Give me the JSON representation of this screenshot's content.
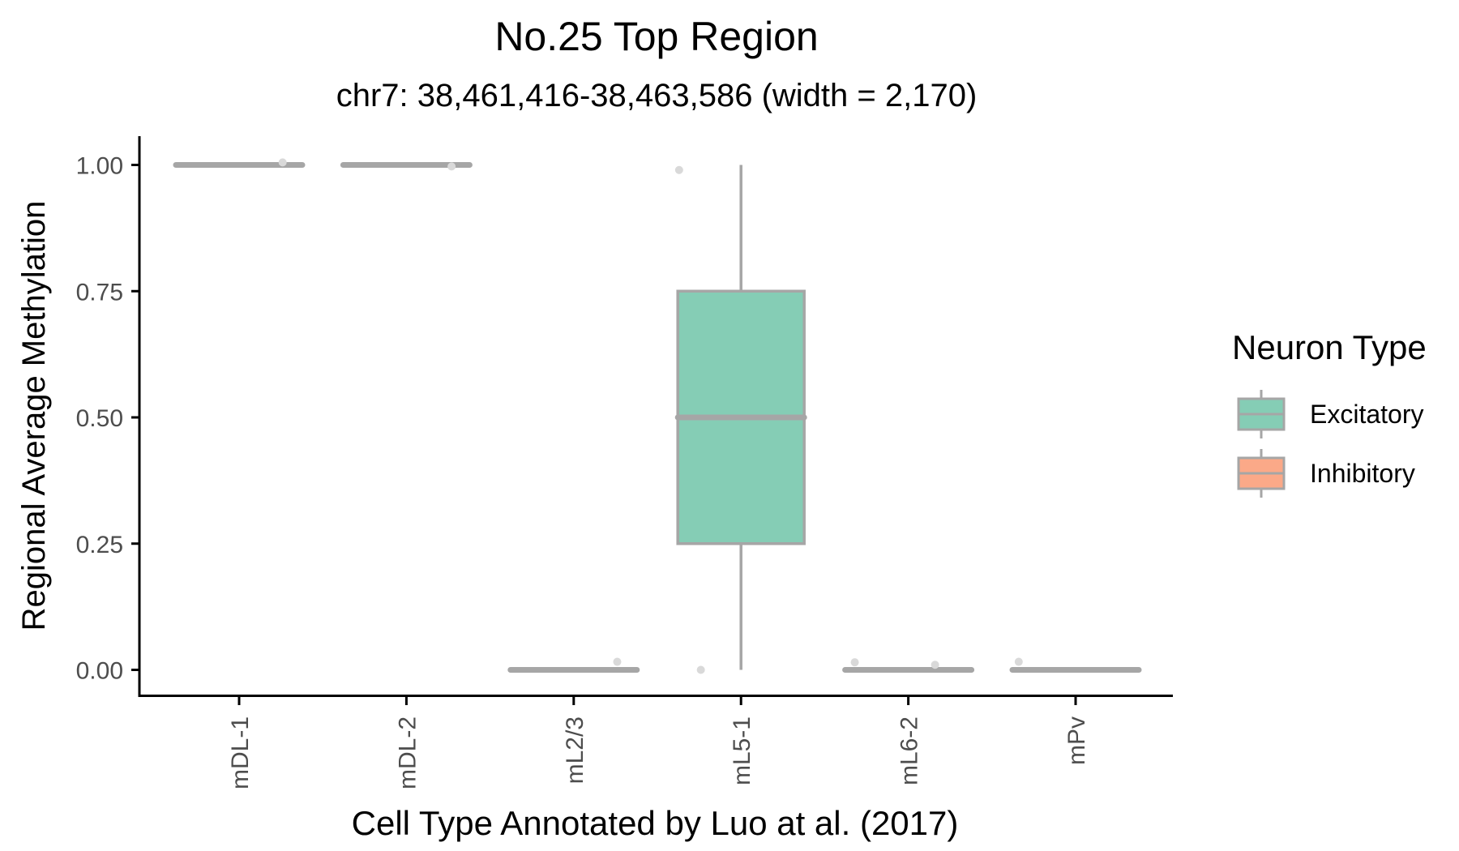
{
  "chart_data": {
    "type": "box",
    "title": "No.25 Top Region",
    "subtitle": "chr7: 38,461,416-38,463,586 (width = 2,170)",
    "xlabel": "Cell Type Annotated by Luo at al. (2017)",
    "ylabel": "Regional Average Methylation",
    "ylim": [
      -0.05,
      1.055
    ],
    "yticks": [
      0.0,
      0.25,
      0.5,
      0.75,
      1.0
    ],
    "ytick_labels": [
      "0.00",
      "0.25",
      "0.50",
      "0.75",
      "1.00"
    ],
    "grid": false,
    "legend": {
      "title": "Neuron Type",
      "position": "right",
      "entries": [
        {
          "label": "Excitatory",
          "color": "#85CDB5"
        },
        {
          "label": "Inhibitory",
          "color": "#FBA988"
        }
      ]
    },
    "categories": [
      "mDL-1",
      "mDL-2",
      "mL2/3",
      "mL5-1",
      "mL6-2",
      "mPv"
    ],
    "boxes": [
      {
        "category": "mDL-1",
        "group": "Excitatory",
        "min": 1.0,
        "q1": 1.0,
        "median": 1.0,
        "q3": 1.0,
        "max": 1.0
      },
      {
        "category": "mDL-2",
        "group": "Excitatory",
        "min": 1.0,
        "q1": 1.0,
        "median": 1.0,
        "q3": 1.0,
        "max": 1.0
      },
      {
        "category": "mL2/3",
        "group": "Excitatory",
        "min": 0.0,
        "q1": 0.0,
        "median": 0.0,
        "q3": 0.0,
        "max": 0.0
      },
      {
        "category": "mL5-1",
        "group": "Excitatory",
        "min": 0.0,
        "q1": 0.25,
        "median": 0.5,
        "q3": 0.75,
        "max": 1.0
      },
      {
        "category": "mL6-2",
        "group": "Excitatory",
        "min": 0.0,
        "q1": 0.0,
        "median": 0.0,
        "q3": 0.0,
        "max": 0.0
      },
      {
        "category": "mPv",
        "group": "Inhibitory",
        "min": 0.0,
        "q1": 0.0,
        "median": 0.0,
        "q3": 0.0,
        "max": 0.0
      }
    ],
    "points": [
      {
        "category": "mDL-1",
        "offset": 0.26,
        "y": 1.005
      },
      {
        "category": "mDL-2",
        "offset": 0.27,
        "y": 0.997
      },
      {
        "category": "mL2/3",
        "offset": 0.26,
        "y": 0.016
      },
      {
        "category": "mL5-1",
        "offset": -0.37,
        "y": 0.99
      },
      {
        "category": "mL5-1",
        "offset": -0.24,
        "y": 0.0
      },
      {
        "category": "mL6-2",
        "offset": -0.32,
        "y": 0.015
      },
      {
        "category": "mL6-2",
        "offset": 0.16,
        "y": 0.01
      },
      {
        "category": "mPv",
        "offset": -0.34,
        "y": 0.016
      }
    ]
  },
  "colors": {
    "box_outline": "#A6A6A6",
    "point": "#D9D9D9",
    "axis": "#000000",
    "tick_label": "#4D4D4D"
  }
}
